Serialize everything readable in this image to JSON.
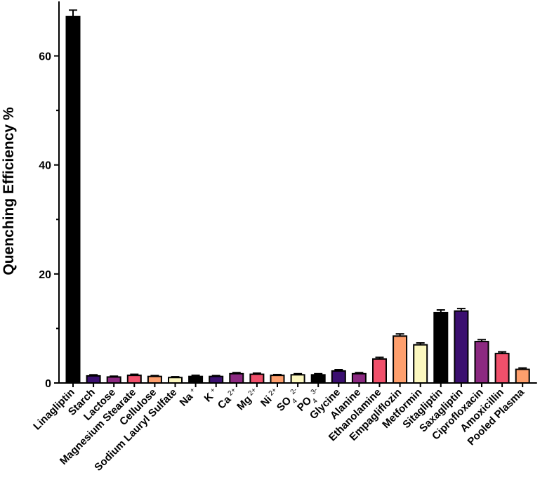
{
  "chart_data": {
    "type": "bar",
    "ylabel": "Quenching Efficiency %",
    "xlabel": "",
    "ylim": [
      0,
      70
    ],
    "yticks": [
      "0",
      "20",
      "40",
      "60"
    ],
    "grid": false,
    "categories": [
      {
        "base": "Linagliptin",
        "sub": "",
        "sup": ""
      },
      {
        "base": "Starch",
        "sub": "",
        "sup": ""
      },
      {
        "base": "Lactose",
        "sub": "",
        "sup": ""
      },
      {
        "base": "Magnesium Stearate",
        "sub": "",
        "sup": ""
      },
      {
        "base": "Cellulose",
        "sub": "",
        "sup": ""
      },
      {
        "base": "Sodium Lauryl Sulfate",
        "sub": "",
        "sup": ""
      },
      {
        "base": "Na",
        "sub": "",
        "sup": "+"
      },
      {
        "base": "K",
        "sub": "",
        "sup": "+"
      },
      {
        "base": "Ca",
        "sub": "",
        "sup": "2+"
      },
      {
        "base": "Mg",
        "sub": "",
        "sup": "2+"
      },
      {
        "base": "Ni",
        "sub": "",
        "sup": "2+"
      },
      {
        "base": "SO",
        "sub": "4",
        "sup": "2-"
      },
      {
        "base": "PO",
        "sub": "4",
        "sup": "3-"
      },
      {
        "base": "Glycine",
        "sub": "",
        "sup": ""
      },
      {
        "base": "Alanine",
        "sub": "",
        "sup": ""
      },
      {
        "base": "Ethanolamine",
        "sub": "",
        "sup": ""
      },
      {
        "base": "Empagliflozin",
        "sub": "",
        "sup": ""
      },
      {
        "base": "Metformin",
        "sub": "",
        "sup": ""
      },
      {
        "base": "Sitagliptin",
        "sub": "",
        "sup": ""
      },
      {
        "base": "Saxagliptin",
        "sub": "",
        "sup": ""
      },
      {
        "base": "Ciprofloxacin",
        "sub": "",
        "sup": ""
      },
      {
        "base": "Amoxicillin",
        "sub": "",
        "sup": ""
      },
      {
        "base": "Pooled Plasma",
        "sub": "",
        "sup": ""
      }
    ],
    "values": [
      67.2,
      1.3,
      1.1,
      1.4,
      1.2,
      1.0,
      1.2,
      1.2,
      1.7,
      1.6,
      1.4,
      1.5,
      1.5,
      2.2,
      1.7,
      4.4,
      8.6,
      7.0,
      12.9,
      13.2,
      7.6,
      5.4,
      2.5
    ],
    "errors": [
      1.2,
      0.2,
      0.15,
      0.2,
      0.15,
      0.15,
      0.2,
      0.15,
      0.2,
      0.2,
      0.15,
      0.2,
      0.2,
      0.25,
      0.2,
      0.3,
      0.4,
      0.35,
      0.5,
      0.45,
      0.35,
      0.3,
      0.25
    ],
    "colors": [
      "#000000",
      "#3b0f70",
      "#8c2981",
      "#f0506b",
      "#fe9f6d",
      "#fcf8bf",
      "#000000",
      "#3b0f70",
      "#8c2981",
      "#f0506b",
      "#fe9f6d",
      "#fcf8bf",
      "#000000",
      "#3b0f70",
      "#8c2981",
      "#f0506b",
      "#fe9f6d",
      "#fcf8bf",
      "#000000",
      "#3b0f70",
      "#8c2981",
      "#f0506b",
      "#fe9f6d"
    ]
  }
}
